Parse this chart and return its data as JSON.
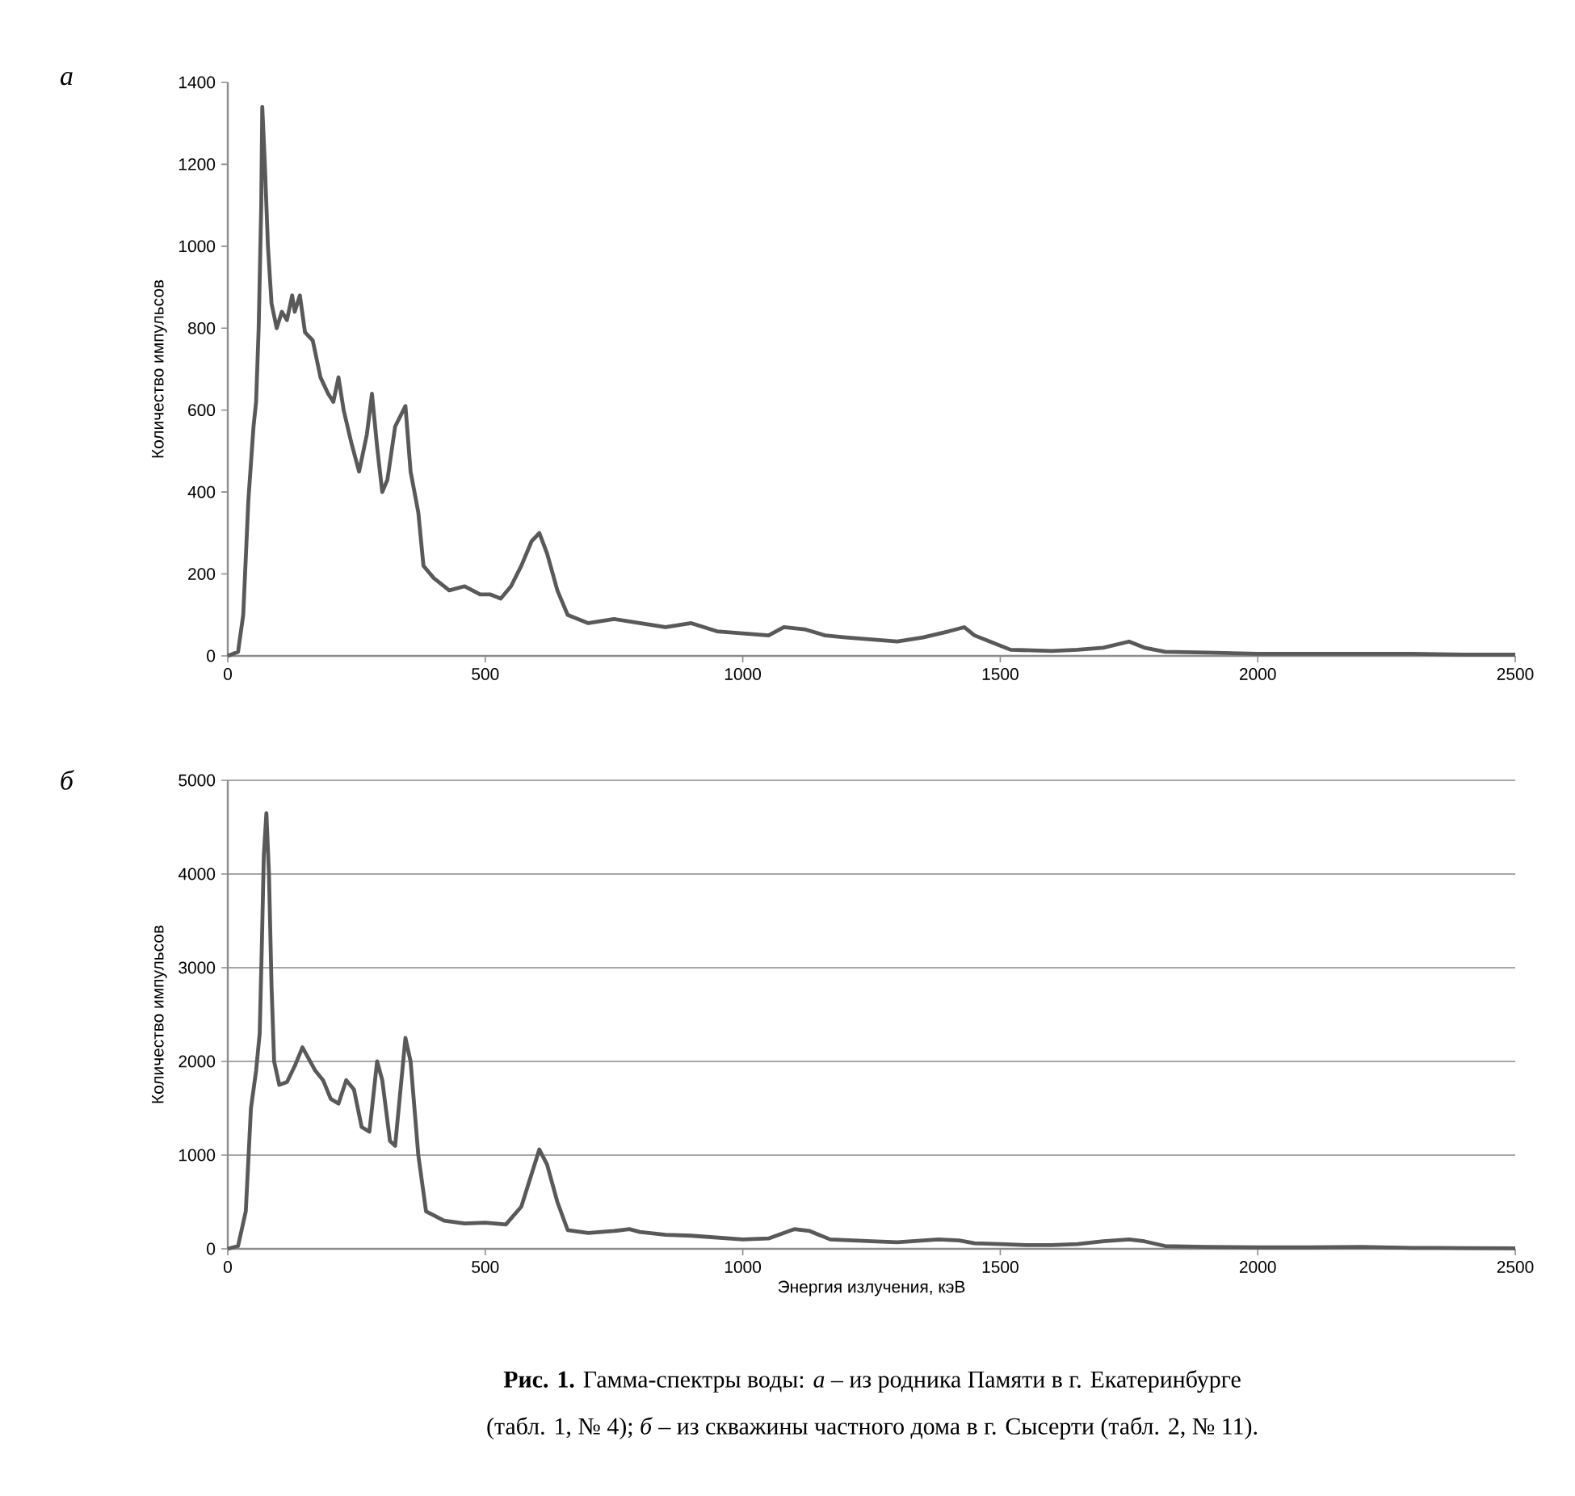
{
  "chart_data": [
    {
      "type": "line",
      "title": "а",
      "ylabel": "Количество импульсов",
      "color": "#595959",
      "grid": false,
      "xlim": [
        0,
        2500
      ],
      "ylim": [
        0,
        1400
      ],
      "xticks": [
        0,
        500,
        1000,
        1500,
        2000,
        2500
      ],
      "yticks": [
        0,
        200,
        400,
        600,
        800,
        1000,
        1200,
        1400
      ],
      "x": [
        0,
        20,
        30,
        40,
        50,
        55,
        60,
        65,
        67,
        72,
        78,
        85,
        95,
        105,
        115,
        125,
        130,
        140,
        150,
        165,
        180,
        195,
        205,
        215,
        225,
        240,
        255,
        270,
        280,
        290,
        300,
        310,
        325,
        345,
        355,
        370,
        380,
        400,
        430,
        460,
        490,
        510,
        530,
        550,
        570,
        590,
        605,
        620,
        640,
        660,
        700,
        750,
        800,
        850,
        900,
        950,
        1000,
        1050,
        1080,
        1120,
        1160,
        1200,
        1250,
        1300,
        1350,
        1400,
        1430,
        1450,
        1480,
        1520,
        1600,
        1650,
        1700,
        1750,
        1780,
        1820,
        1900,
        2000,
        2100,
        2200,
        2300,
        2400,
        2500
      ],
      "values": [
        0,
        10,
        100,
        380,
        560,
        620,
        800,
        1100,
        1340,
        1200,
        1000,
        860,
        800,
        840,
        820,
        880,
        840,
        880,
        790,
        770,
        680,
        640,
        620,
        680,
        600,
        520,
        450,
        540,
        640,
        510,
        400,
        430,
        560,
        610,
        450,
        350,
        220,
        190,
        160,
        170,
        150,
        150,
        140,
        170,
        220,
        280,
        300,
        250,
        160,
        100,
        80,
        90,
        80,
        70,
        80,
        60,
        55,
        50,
        70,
        65,
        50,
        45,
        40,
        35,
        45,
        60,
        70,
        50,
        35,
        15,
        12,
        15,
        20,
        35,
        20,
        10,
        8,
        5,
        5,
        5,
        5,
        3,
        3
      ]
    },
    {
      "type": "line",
      "title": "б",
      "xlabel": "Энергия излучения, кэВ",
      "ylabel": "Количество импульсов",
      "color": "#595959",
      "grid": "y",
      "xlim": [
        0,
        2500
      ],
      "ylim": [
        0,
        5000
      ],
      "xticks": [
        0,
        500,
        1000,
        1500,
        2000,
        2500
      ],
      "yticks": [
        0,
        1000,
        2000,
        3000,
        4000,
        5000
      ],
      "annotations": [
        "**Рис. 1.** Гамма-спектры воды: *а* – из родника Памяти в г. Екатеринбурге",
        "(табл. 1, № 4); *б* – из скважины частного дома в г. Сысерти (табл. 2, № 11)."
      ],
      "x": [
        0,
        20,
        35,
        45,
        55,
        62,
        66,
        70,
        75,
        80,
        85,
        90,
        100,
        115,
        130,
        145,
        155,
        170,
        185,
        200,
        215,
        230,
        245,
        260,
        275,
        290,
        300,
        315,
        325,
        345,
        355,
        370,
        385,
        420,
        460,
        500,
        540,
        570,
        590,
        605,
        620,
        640,
        660,
        700,
        750,
        780,
        800,
        850,
        900,
        950,
        1000,
        1050,
        1100,
        1130,
        1170,
        1250,
        1300,
        1380,
        1420,
        1450,
        1500,
        1550,
        1600,
        1650,
        1700,
        1750,
        1780,
        1820,
        1900,
        2000,
        2100,
        2200,
        2300,
        2400,
        2500
      ],
      "values": [
        0,
        30,
        400,
        1500,
        1900,
        2300,
        3200,
        4200,
        4650,
        4000,
        2800,
        2000,
        1750,
        1780,
        1950,
        2150,
        2050,
        1900,
        1800,
        1600,
        1550,
        1800,
        1700,
        1300,
        1250,
        2000,
        1800,
        1150,
        1100,
        2250,
        2000,
        1000,
        400,
        300,
        270,
        280,
        260,
        450,
        800,
        1060,
        900,
        500,
        200,
        170,
        190,
        210,
        180,
        150,
        140,
        120,
        100,
        110,
        210,
        190,
        100,
        80,
        70,
        100,
        90,
        60,
        50,
        40,
        40,
        50,
        80,
        100,
        80,
        30,
        20,
        15,
        15,
        20,
        10,
        8,
        5
      ]
    }
  ]
}
